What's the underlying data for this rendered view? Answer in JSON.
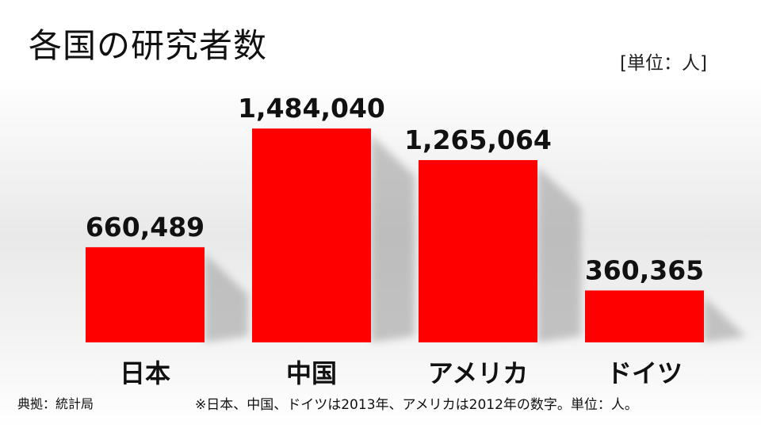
{
  "title": "各国の研究者数",
  "unit_label": "[単位：人]",
  "source": "典拠：統計局",
  "note": "※日本、中国、ドイツは2013年、アメリカは2012年の数字。単位：人。",
  "colors": {
    "bar": "#ff0000",
    "shadow": "#9a9a9a",
    "text": "#111111"
  },
  "chart_data": {
    "type": "bar",
    "title": "各国の研究者数",
    "categories": [
      "日本",
      "中国",
      "アメリカ",
      "ドイツ"
    ],
    "values": [
      660489,
      1484040,
      1265064,
      360365
    ],
    "value_labels": [
      "660,489",
      "1,484,040",
      "1,265,064",
      "360,365"
    ],
    "unit": "人",
    "ylim": [
      0,
      1650000
    ],
    "grid": false,
    "legend": "none"
  }
}
